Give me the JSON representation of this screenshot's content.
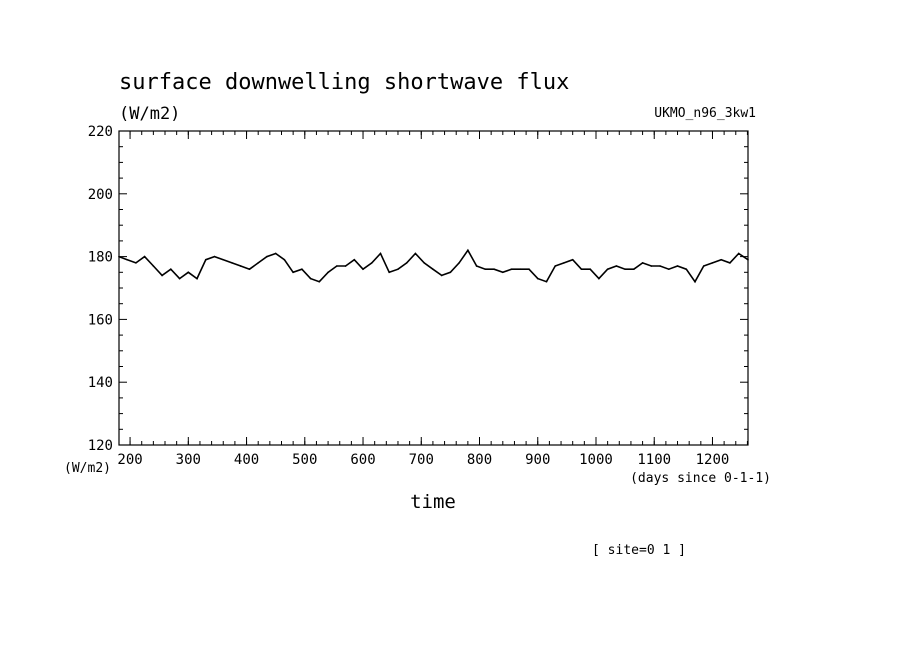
{
  "chart_data": {
    "type": "line",
    "title": "surface downwelling shortwave flux",
    "title_units": "(W/m2)",
    "model": "UKMO_n96_3kw1",
    "ylabel": "(W/m2)",
    "xlabel": "time",
    "x_units": "(days since 0-1-1)",
    "site_label": "[ site=0 1 ]",
    "xlim": [
      181,
      1261
    ],
    "ylim": [
      120,
      220
    ],
    "x_ticks": [
      200,
      300,
      400,
      500,
      600,
      700,
      800,
      900,
      1000,
      1100,
      1200
    ],
    "y_ticks": [
      120,
      140,
      160,
      180,
      200,
      220
    ],
    "grid": false,
    "series": [
      {
        "x": [
          181,
          195,
          210,
          225,
          240,
          255,
          270,
          285,
          300,
          315,
          330,
          345,
          360,
          375,
          390,
          405,
          420,
          435,
          450,
          465,
          480,
          495,
          510,
          525,
          540,
          555,
          570,
          585,
          600,
          615,
          630,
          645,
          660,
          675,
          690,
          705,
          720,
          735,
          750,
          765,
          780,
          795,
          810,
          825,
          840,
          855,
          870,
          885,
          900,
          915,
          930,
          945,
          960,
          975,
          990,
          1005,
          1020,
          1035,
          1050,
          1065,
          1080,
          1095,
          1110,
          1125,
          1140,
          1155,
          1170,
          1185,
          1200,
          1215,
          1230,
          1245,
          1261
        ],
        "values": [
          180,
          179,
          178,
          180,
          177,
          174,
          176,
          173,
          175,
          173,
          179,
          180,
          179,
          178,
          177,
          176,
          178,
          180,
          181,
          179,
          175,
          176,
          173,
          172,
          175,
          177,
          177,
          179,
          176,
          178,
          181,
          175,
          176,
          178,
          181,
          178,
          176,
          174,
          175,
          178,
          182,
          177,
          176,
          176,
          175,
          176,
          176,
          176,
          173,
          172,
          177,
          178,
          179,
          176,
          176,
          173,
          176,
          177,
          176,
          176,
          178,
          177,
          177,
          176,
          177,
          176,
          172,
          177,
          178,
          179,
          178,
          181,
          179
        ]
      }
    ]
  }
}
